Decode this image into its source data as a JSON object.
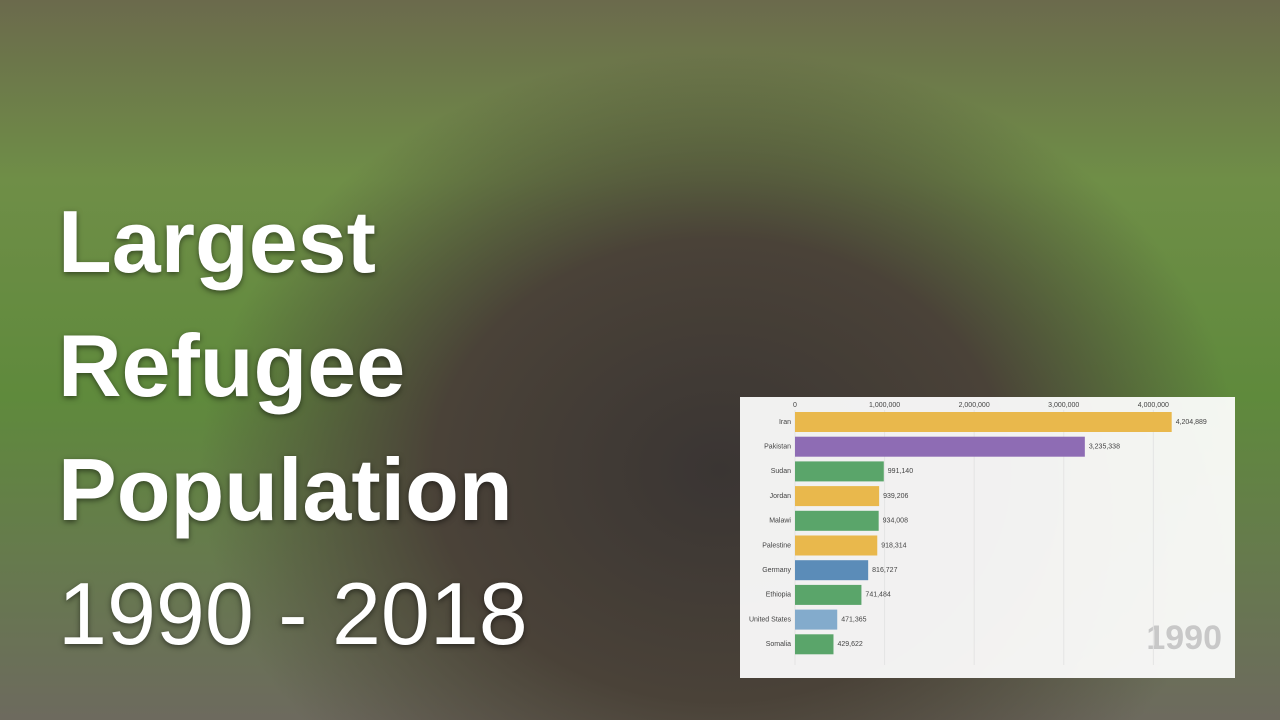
{
  "overlay_title": [
    "Largest",
    "Refugee",
    "Population",
    "1990 - 2018"
  ],
  "chart_data": {
    "type": "bar",
    "orientation": "horizontal",
    "year": "1990",
    "categories": [
      "Iran",
      "Pakistan",
      "Sudan",
      "Jordan",
      "Malawi",
      "Palestine",
      "Germany",
      "Ethiopia",
      "United States",
      "Somalia"
    ],
    "values": [
      4204889,
      3235338,
      991140,
      939206,
      934008,
      918314,
      816727,
      741484,
      471365,
      429622
    ],
    "value_labels": [
      "4,204,889",
      "3,235,338",
      "991,140",
      "939,206",
      "934,008",
      "918,314",
      "816,727",
      "741,484",
      "471,365",
      "429,622"
    ],
    "colors": [
      "#e9b84c",
      "#8e6cb4",
      "#5aa56a",
      "#e9b84c",
      "#5aa56a",
      "#e9b84c",
      "#5b8cb8",
      "#5aa56a",
      "#83abcc",
      "#5aa56a"
    ],
    "xlim": [
      0,
      4800000
    ],
    "xticks": [
      0,
      {
        "value": 1000000,
        "label": "1,000,000"
      },
      {
        "value": 2000000,
        "label": "2,000,000"
      },
      {
        "value": 3000000,
        "label": "3,000,000"
      },
      {
        "value": 4000000,
        "label": "4,000,000"
      }
    ]
  }
}
